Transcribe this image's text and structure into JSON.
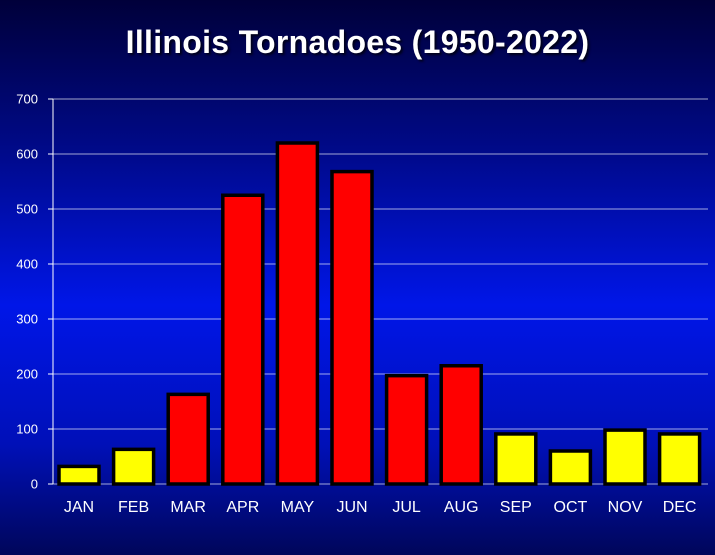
{
  "title": "Illinois Tornadoes (1950-2022)",
  "colors": {
    "bar_high": "#ff0000",
    "bar_low": "#ffff00"
  },
  "chart_data": {
    "type": "bar",
    "title": "Illinois Tornadoes (1950-2022)",
    "xlabel": "",
    "ylabel": "",
    "ylim": [
      0,
      700
    ],
    "yticks": [
      "0",
      "100",
      "200",
      "300",
      "400",
      "500",
      "600",
      "700"
    ],
    "grid": true,
    "categories": [
      "JAN",
      "FEB",
      "MAR",
      "APR",
      "MAY",
      "JUN",
      "JUL",
      "AUG",
      "SEP",
      "OCT",
      "NOV",
      "DEC"
    ],
    "values": [
      32,
      63,
      163,
      525,
      620,
      568,
      197,
      215,
      91,
      60,
      98,
      91
    ],
    "bar_colors": [
      "#ffff00",
      "#ffff00",
      "#ff0000",
      "#ff0000",
      "#ff0000",
      "#ff0000",
      "#ff0000",
      "#ff0000",
      "#ffff00",
      "#ffff00",
      "#ffff00",
      "#ffff00"
    ]
  }
}
